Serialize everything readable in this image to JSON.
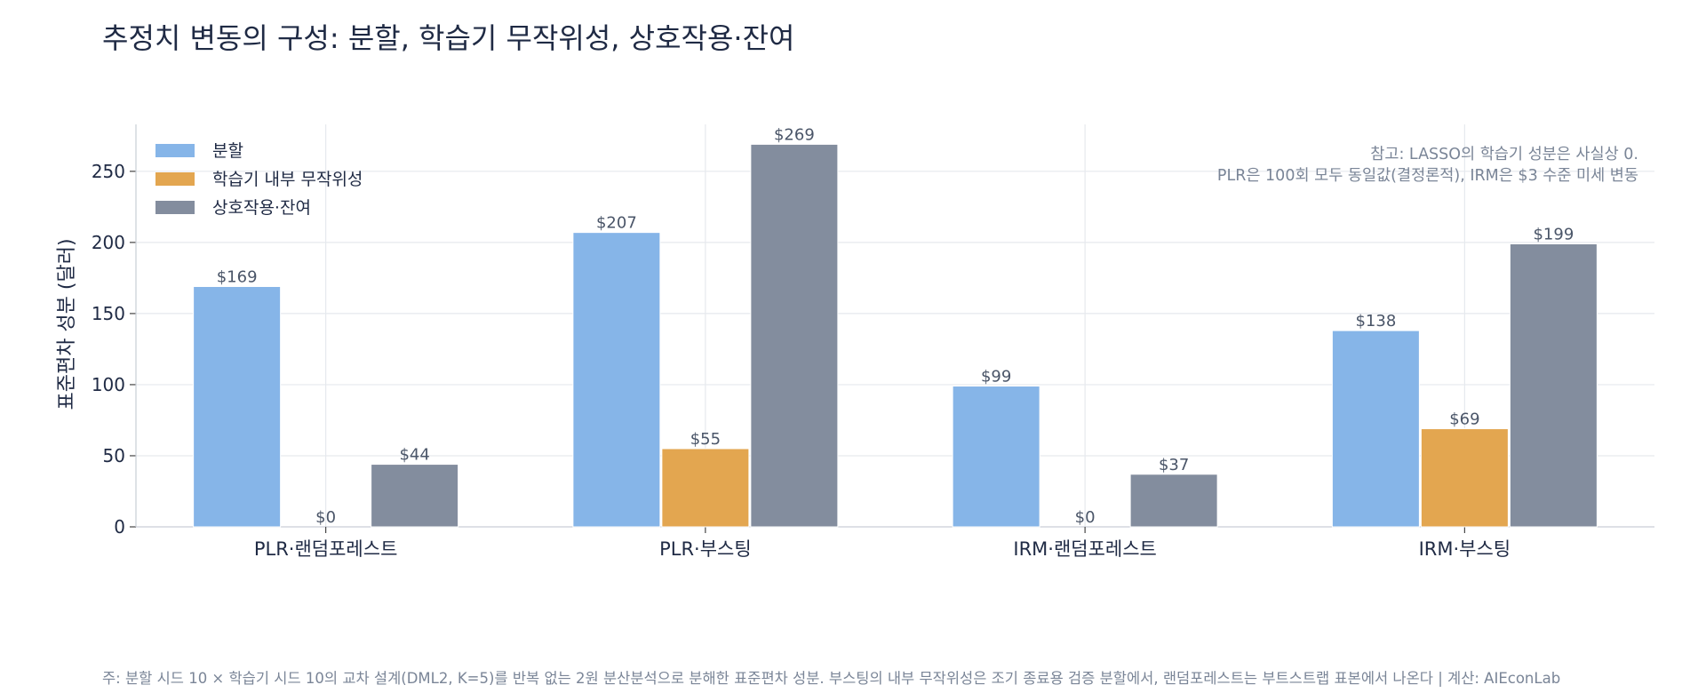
{
  "title": "추정치 변동의 구성: 분할, 학습기 무작위성, 상호작용·잔여",
  "note_lines": [
    "참고: LASSO의 학습기 성분은 사실상 0.",
    "PLR은 100회 모두 동일값(결정론적), IRM은 $3 수준 미세 변동"
  ],
  "footnote": "주: 분할 시드 10 × 학습기 시드 10의 교차 설계(DML2, K=5)를 반복 없는 2원 분산분석으로 분해한 표준편차 성분. 부스팅의 내부 무작위성은 조기 종료용 검증 분할에서, 랜덤포레스트는 부트스트랩 표본에서 나온다  |  계산: AIEconLab",
  "colors": {
    "split": "#86b5e8",
    "learner": "#e3a650",
    "interaction": "#838d9e",
    "label": "#4a5568",
    "grid": "#e6e9ee",
    "axis": "#c9ced6"
  },
  "chart_data": {
    "type": "bar",
    "title": "추정치 변동의 구성: 분할, 학습기 무작위성, 상호작용·잔여",
    "xlabel": "",
    "ylabel": "표준편차 성분 (달러)",
    "categories": [
      "PLR·랜덤포레스트",
      "PLR·부스팅",
      "IRM·랜덤포레스트",
      "IRM·부스팅"
    ],
    "series": [
      {
        "name": "분할",
        "values": [
          169,
          207,
          99,
          138
        ],
        "labels": [
          "$169",
          "$207",
          "$99",
          "$138"
        ]
      },
      {
        "name": "학습기 내부 무작위성",
        "values": [
          0,
          55,
          0,
          69
        ],
        "labels": [
          "$0",
          "$55",
          "$0",
          "$69"
        ]
      },
      {
        "name": "상호작용·잔여",
        "values": [
          44,
          269,
          37,
          199
        ],
        "labels": [
          "$44",
          "$269",
          "$37",
          "$199"
        ]
      }
    ],
    "ylim": [
      0,
      283
    ],
    "yticks": [
      0,
      50,
      100,
      150,
      200,
      250
    ],
    "grid": true,
    "legend_position": "top-left"
  }
}
